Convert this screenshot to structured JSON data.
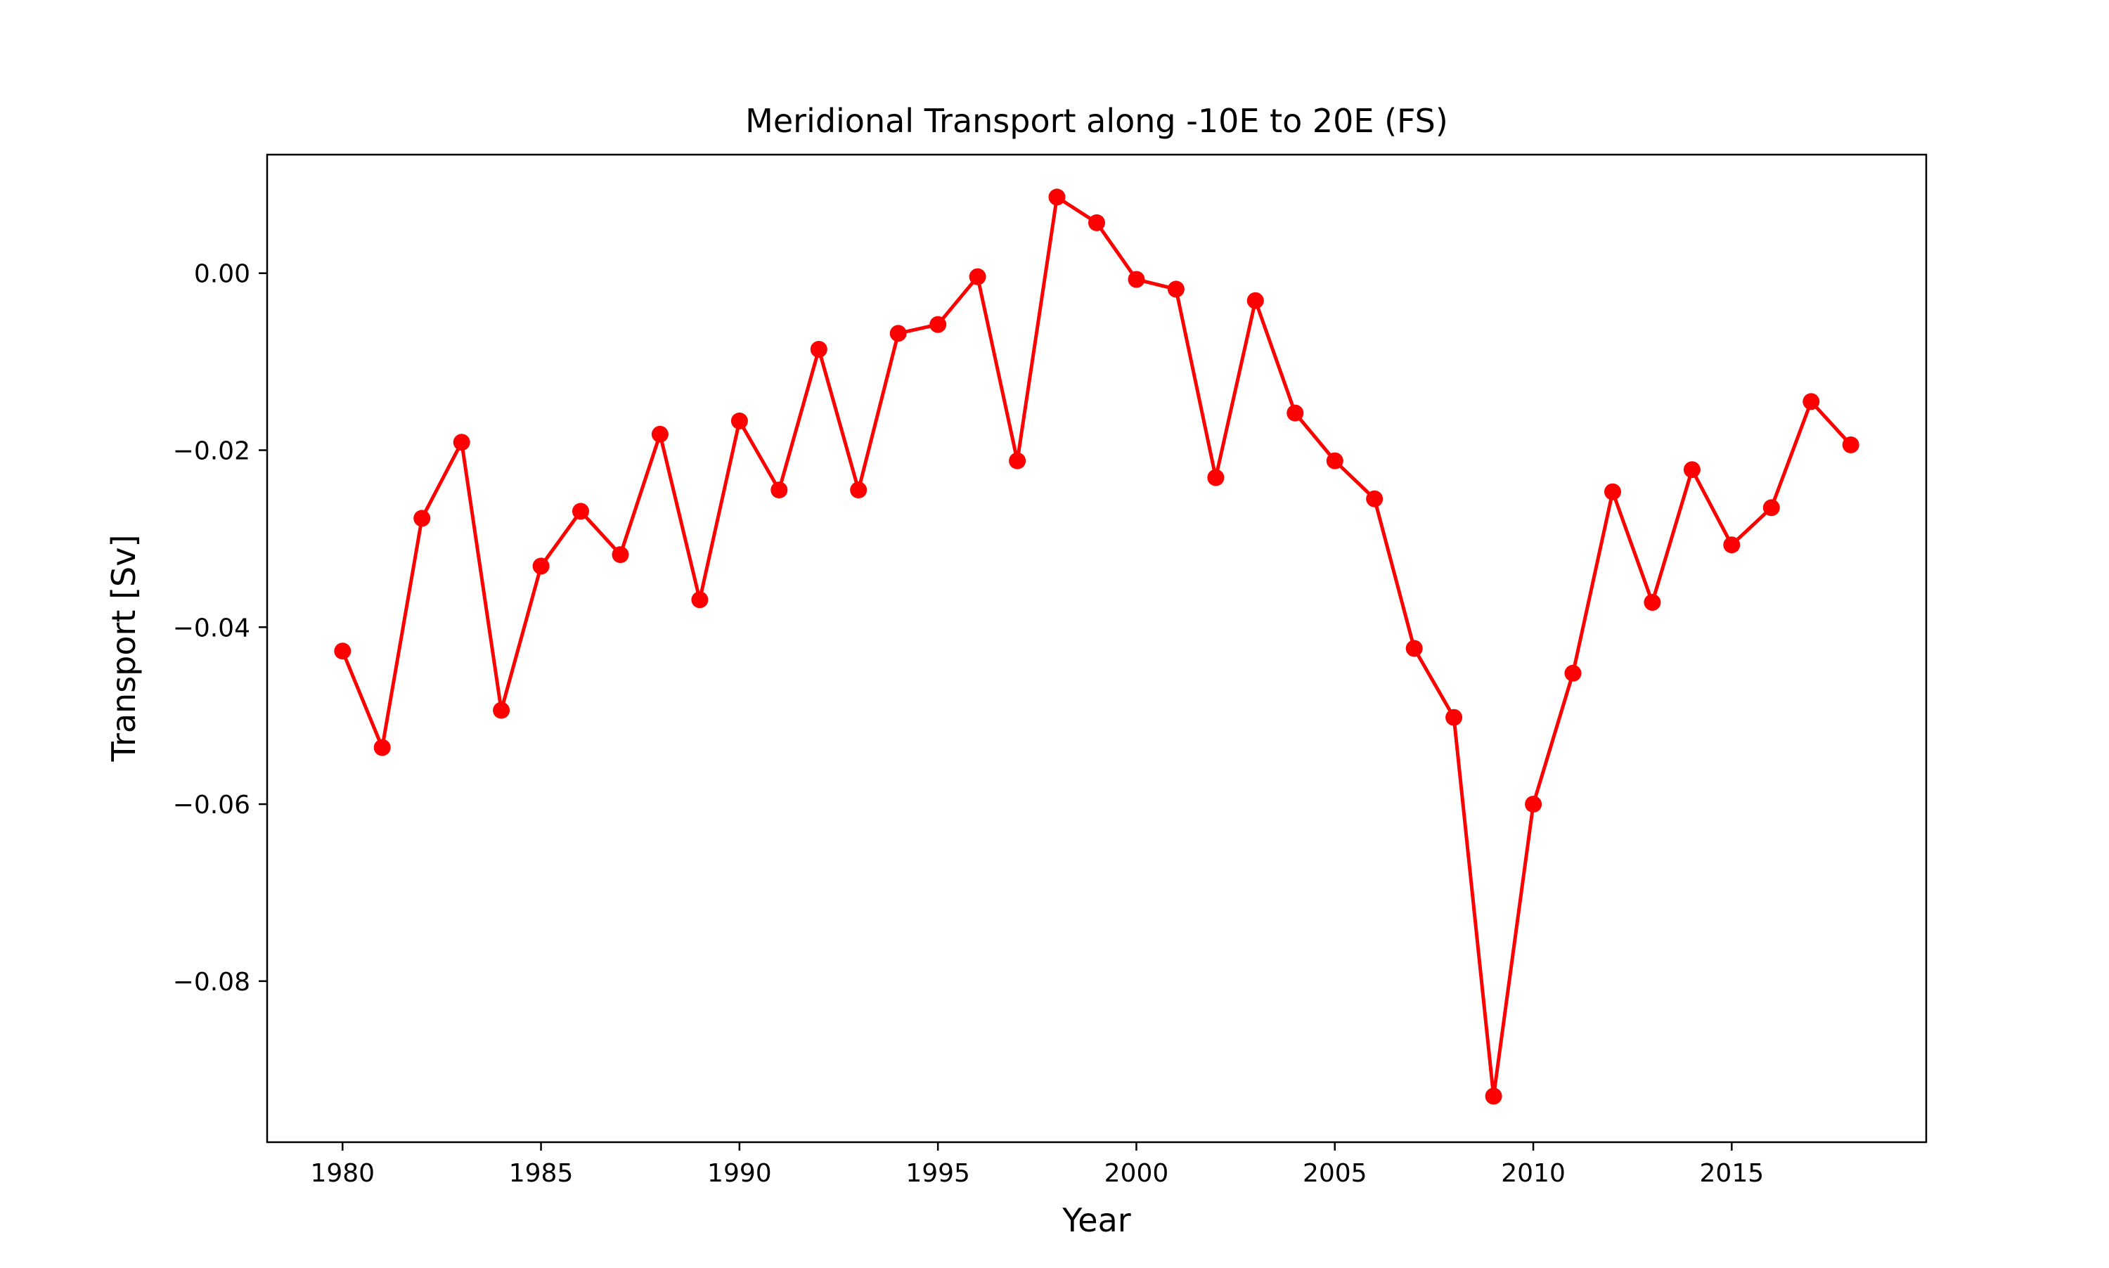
{
  "chart_data": {
    "type": "line",
    "title": "Meridional Transport along -10E to 20E (FS)",
    "xlabel": "Year",
    "ylabel": "Transport [Sv]",
    "xlim": [
      1978.1,
      2019.9
    ],
    "ylim": [
      -0.0982,
      0.0134
    ],
    "xticks": [
      1980,
      1985,
      1990,
      1995,
      2000,
      2005,
      2010,
      2015
    ],
    "yticks": [
      0.0,
      -0.02,
      -0.04,
      -0.06,
      -0.08
    ],
    "ytick_labels": [
      "0.00",
      "−0.02",
      "−0.04",
      "−0.06",
      "−0.08"
    ],
    "grid": false,
    "legend": "none",
    "series": [
      {
        "color": "#ff0000",
        "marker": "circle",
        "x": [
          1980,
          1981,
          1982,
          1983,
          1984,
          1985,
          1986,
          1987,
          1988,
          1989,
          1990,
          1991,
          1992,
          1993,
          1994,
          1995,
          1996,
          1997,
          1998,
          1999,
          2000,
          2001,
          2002,
          2003,
          2004,
          2005,
          2006,
          2007,
          2008,
          2009,
          2010,
          2011,
          2012,
          2013,
          2014,
          2015,
          2016,
          2017,
          2018
        ],
        "y": [
          -0.0427,
          -0.0536,
          -0.0277,
          -0.0191,
          -0.0494,
          -0.0331,
          -0.0269,
          -0.0318,
          -0.0182,
          -0.0369,
          -0.0167,
          -0.0245,
          -0.0086,
          -0.0245,
          -0.0068,
          -0.0058,
          -0.0004,
          -0.0212,
          0.0086,
          0.0057,
          -0.0007,
          -0.0018,
          -0.0231,
          -0.0031,
          -0.0158,
          -0.0212,
          -0.0255,
          -0.0424,
          -0.0502,
          -0.093,
          -0.06,
          -0.0452,
          -0.0247,
          -0.0372,
          -0.0222,
          -0.0307,
          -0.0265,
          -0.0145,
          -0.0194
        ]
      }
    ]
  }
}
